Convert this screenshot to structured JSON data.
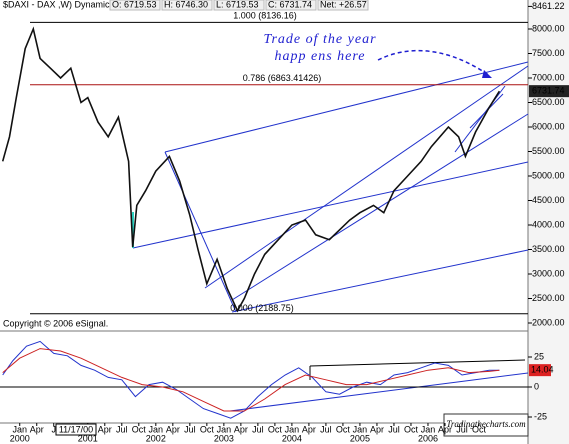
{
  "chart_data": {
    "type": "line",
    "title": "$DAXI - DAX ,W) Dynamic",
    "quote": [
      "O: 6719.53",
      "H: 6746.30",
      "L: 6719.53",
      "C: 6731.74",
      "Net: +26.57"
    ],
    "xlim": [
      1999.71,
      2007.47
    ],
    "ylim": [
      1857,
      8490
    ],
    "yticks": [
      {
        "value": 2000,
        "label": "2000.00"
      },
      {
        "value": 2500,
        "label": "2500.00"
      },
      {
        "value": 3000,
        "label": "3000.00"
      },
      {
        "value": 3500,
        "label": "3500.00"
      },
      {
        "value": 4000,
        "label": "4000.00"
      },
      {
        "value": 4500,
        "label": "4500.00"
      },
      {
        "value": 5000,
        "label": "5000.00"
      },
      {
        "value": 5500,
        "label": "5500.00"
      },
      {
        "value": 6000,
        "label": "6000.00"
      },
      {
        "value": 6500,
        "label": "6500.00"
      },
      {
        "value": 7000,
        "label": "7000.00"
      },
      {
        "value": 7500,
        "label": "7500.00"
      },
      {
        "value": 8000,
        "label": "8000.00"
      },
      8461.22
    ],
    "xticks": [
      {
        "value": 2000.0,
        "label": "Jan"
      },
      {
        "value": 2000.25,
        "label": "Apr"
      },
      {
        "value": 2000.5,
        "label": "J"
      },
      {
        "value": 2001.0,
        "label": "Jan"
      },
      {
        "value": 2001.25,
        "label": "Apr"
      },
      {
        "value": 2001.5,
        "label": "Jul"
      },
      {
        "value": 2001.75,
        "label": "Oct"
      },
      {
        "value": 2002.0,
        "label": "Jan"
      },
      {
        "value": 2002.25,
        "label": "Apr"
      },
      {
        "value": 2002.5,
        "label": "Jul"
      },
      {
        "value": 2002.75,
        "label": "Oct"
      },
      {
        "value": 2003.0,
        "label": "Jan"
      },
      {
        "value": 2003.25,
        "label": "Apr"
      },
      {
        "value": 2003.5,
        "label": "Jul"
      },
      {
        "value": 2003.75,
        "label": "Oct"
      },
      {
        "value": 2004.0,
        "label": "Jan"
      },
      {
        "value": 2004.25,
        "label": "Apr"
      },
      {
        "value": 2004.5,
        "label": "Jul"
      },
      {
        "value": 2004.75,
        "label": "Oct"
      },
      {
        "value": 2005.0,
        "label": "Jan"
      },
      {
        "value": 2005.25,
        "label": "Apr"
      },
      {
        "value": 2005.5,
        "label": "Jul"
      },
      {
        "value": 2005.75,
        "label": "Oct"
      },
      {
        "value": 2006.0,
        "label": "Jan"
      },
      {
        "value": 2006.25,
        "label": "Apr"
      },
      {
        "value": 2006.5,
        "label": "Jul"
      },
      {
        "value": 2006.75,
        "label": "Oct"
      }
    ],
    "year_ticks": [
      2000,
      2001,
      2002,
      2003,
      2004,
      2005,
      2006
    ],
    "cursor_date": "11/17/00",
    "price": {
      "color": "#111111",
      "x": [
        1999.75,
        1999.85,
        1999.95,
        2000.08,
        2000.2,
        2000.3,
        2000.45,
        2000.6,
        2000.75,
        2000.9,
        2001.0,
        2001.15,
        2001.3,
        2001.45,
        2001.6,
        2001.66,
        2001.72,
        2001.85,
        2002.0,
        2002.2,
        2002.35,
        2002.5,
        2002.62,
        2002.75,
        2002.9,
        2003.05,
        2003.2,
        2003.3,
        2003.45,
        2003.6,
        2003.8,
        2004.0,
        2004.2,
        2004.35,
        2004.55,
        2004.7,
        2004.85,
        2005.0,
        2005.2,
        2005.35,
        2005.5,
        2005.7,
        2005.9,
        2006.05,
        2006.3,
        2006.45,
        2006.55,
        2006.7,
        2006.9,
        2007.05
      ],
      "values": [
        5300,
        5800,
        6600,
        7600,
        8000,
        7400,
        7200,
        7000,
        7200,
        6500,
        6600,
        6100,
        5800,
        6200,
        5300,
        3550,
        4400,
        4700,
        5100,
        5400,
        4900,
        4200,
        3500,
        2800,
        3300,
        2700,
        2250,
        2500,
        3000,
        3400,
        3700,
        4000,
        4100,
        3800,
        3700,
        3900,
        4100,
        4250,
        4400,
        4250,
        4700,
        5000,
        5300,
        5600,
        6000,
        5800,
        5400,
        5900,
        6400,
        6731.74
      ]
    },
    "fib_levels": [
      {
        "label": "1.000 (8136.16)",
        "value": 8136.16,
        "color": "#000000"
      },
      {
        "label": "0.786 (6863.41426)",
        "value": 6863.41426,
        "color": "#aa1111"
      },
      {
        "label": "0.000 (2188.75)",
        "value": 2188.75,
        "color": "#000000"
      }
    ],
    "last_price": 6731.74,
    "annotation": [
      "Trade of the year",
      "happ ens here"
    ],
    "copyright": "Copyright © 2006 eSignal.",
    "watermark": "Tradingthecharts.com",
    "indicator": {
      "ylim": [
        -30,
        45
      ],
      "yticks": [
        25,
        0,
        -25
      ],
      "last": 14.04,
      "series": [
        {
          "color": "#2233cc",
          "x": [
            1999.75,
            1999.9,
            2000.1,
            2000.3,
            2000.5,
            2000.7,
            2000.9,
            2001.1,
            2001.3,
            2001.5,
            2001.7,
            2001.9,
            2002.1,
            2002.3,
            2002.5,
            2002.7,
            2002.9,
            2003.1,
            2003.3,
            2003.5,
            2003.7,
            2003.9,
            2004.1,
            2004.3,
            2004.5,
            2004.7,
            2004.9,
            2005.1,
            2005.3,
            2005.5,
            2005.7,
            2005.9,
            2006.1,
            2006.3,
            2006.5,
            2006.7,
            2006.9,
            2007.05
          ],
          "values": [
            10,
            22,
            34,
            38,
            28,
            26,
            18,
            14,
            8,
            6,
            -8,
            2,
            4,
            -2,
            -10,
            -18,
            -22,
            -26,
            -20,
            -8,
            2,
            10,
            16,
            8,
            -4,
            -6,
            0,
            4,
            2,
            10,
            12,
            16,
            20,
            18,
            10,
            12,
            14,
            14.04
          ]
        },
        {
          "color": "#cc2222",
          "x": [
            1999.75,
            2000.0,
            2000.3,
            2000.6,
            2000.9,
            2001.2,
            2001.5,
            2001.8,
            2002.1,
            2002.4,
            2002.7,
            2003.0,
            2003.3,
            2003.6,
            2003.9,
            2004.2,
            2004.5,
            2004.8,
            2005.1,
            2005.4,
            2005.7,
            2006.0,
            2006.3,
            2006.6,
            2006.9,
            2007.05
          ],
          "values": [
            12,
            24,
            32,
            30,
            24,
            16,
            8,
            2,
            0,
            -4,
            -12,
            -20,
            -20,
            -10,
            2,
            10,
            6,
            2,
            2,
            6,
            10,
            14,
            16,
            12,
            13,
            14
          ]
        }
      ]
    }
  }
}
